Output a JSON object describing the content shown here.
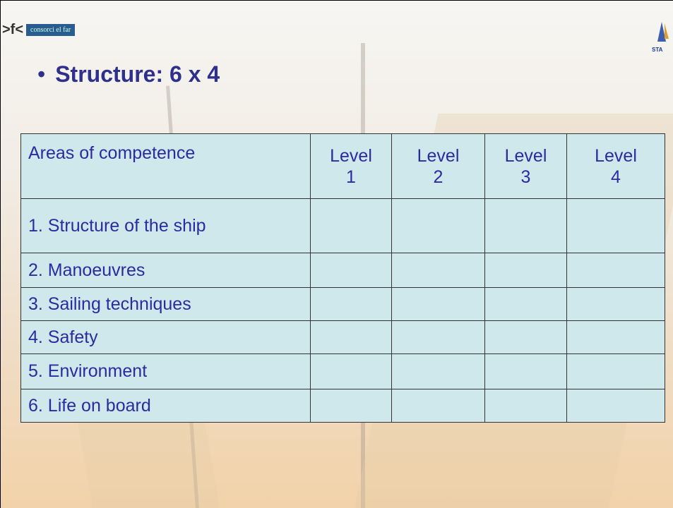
{
  "logo": {
    "left": "consorci el far",
    "right": "STA"
  },
  "title": "Structure: 6 x 4",
  "table": {
    "header": [
      "Areas of competence",
      "Level\n1",
      "Level\n2",
      "Level\n3",
      "Level\n4"
    ],
    "rows": [
      "1. Structure of the ship",
      "2. Manoeuvres",
      "3. Sailing techniques",
      "4. Safety",
      "5. Environment",
      "6. Life on board"
    ]
  }
}
